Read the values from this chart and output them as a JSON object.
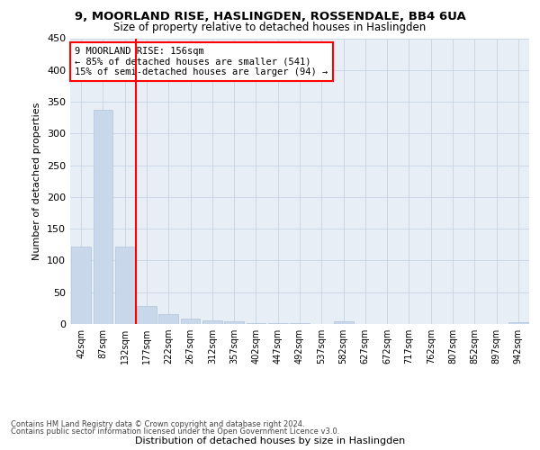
{
  "title": "9, MOORLAND RISE, HASLINGDEN, ROSSENDALE, BB4 6UA",
  "subtitle": "Size of property relative to detached houses in Haslingden",
  "xlabel": "Distribution of detached houses by size in Haslingden",
  "ylabel": "Number of detached properties",
  "footnote1": "Contains HM Land Registry data © Crown copyright and database right 2024.",
  "footnote2": "Contains public sector information licensed under the Open Government Licence v3.0.",
  "annotation_line1": "9 MOORLAND RISE: 156sqm",
  "annotation_line2": "← 85% of detached houses are smaller (541)",
  "annotation_line3": "15% of semi-detached houses are larger (94) →",
  "bar_color": "#c8d8ea",
  "bar_edge_color": "#b0c4d8",
  "categories": [
    "42sqm",
    "87sqm",
    "132sqm",
    "177sqm",
    "222sqm",
    "267sqm",
    "312sqm",
    "357sqm",
    "402sqm",
    "447sqm",
    "492sqm",
    "537sqm",
    "582sqm",
    "627sqm",
    "672sqm",
    "717sqm",
    "762sqm",
    "807sqm",
    "852sqm",
    "897sqm",
    "942sqm"
  ],
  "values": [
    122,
    338,
    122,
    28,
    15,
    8,
    6,
    4,
    2,
    1,
    1,
    0,
    4,
    0,
    0,
    0,
    0,
    0,
    0,
    0,
    3
  ],
  "ylim": [
    0,
    450
  ],
  "yticks": [
    0,
    50,
    100,
    150,
    200,
    250,
    300,
    350,
    400,
    450
  ],
  "background_color": "#ffffff",
  "plot_bg_color": "#e8eef6",
  "grid_color": "#c8d4e4"
}
